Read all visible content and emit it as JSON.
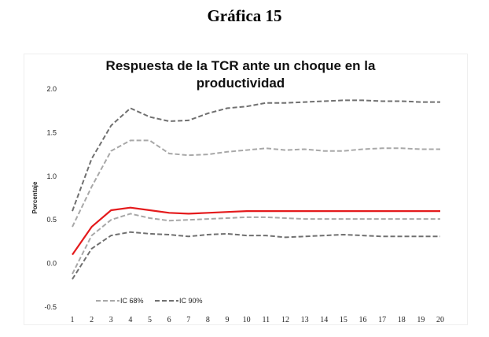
{
  "caption": "Gráfica 15",
  "chart_data": {
    "type": "line",
    "title_line1": "Respuesta de la TCR ante un choque en la",
    "title_line2": "productividad",
    "ylabel": "Porcentaje",
    "xlabel": "",
    "ylim": [
      -0.5,
      2.0
    ],
    "yticks": [
      "2.0",
      "1.5",
      "1.0",
      "0.5",
      "0.0",
      "-0.5"
    ],
    "x": [
      1,
      2,
      3,
      4,
      5,
      6,
      7,
      8,
      9,
      10,
      11,
      12,
      13,
      14,
      15,
      16,
      17,
      18,
      19,
      20
    ],
    "grid": false,
    "legend_position": "bottom-left",
    "series": [
      {
        "name": "",
        "role": "point",
        "color": "#e41a1c",
        "values": [
          0.1,
          0.42,
          0.61,
          0.64,
          0.61,
          0.58,
          0.57,
          0.58,
          0.59,
          0.6,
          0.6,
          0.6,
          0.6,
          0.6,
          0.6,
          0.6,
          0.6,
          0.6,
          0.6,
          0.6
        ]
      },
      {
        "name": "",
        "role": "ic68-upper",
        "color": "#a8a8a8",
        "values": [
          0.42,
          0.88,
          1.29,
          1.41,
          1.41,
          1.26,
          1.24,
          1.25,
          1.28,
          1.3,
          1.32,
          1.3,
          1.31,
          1.29,
          1.29,
          1.31,
          1.32,
          1.32,
          1.31,
          1.31
        ]
      },
      {
        "name": "",
        "role": "ic68-lower",
        "color": "#a8a8a8",
        "values": [
          -0.12,
          0.32,
          0.5,
          0.57,
          0.52,
          0.49,
          0.5,
          0.51,
          0.52,
          0.53,
          0.53,
          0.52,
          0.51,
          0.51,
          0.51,
          0.51,
          0.51,
          0.51,
          0.51,
          0.51
        ]
      },
      {
        "name": "",
        "role": "ic90-upper",
        "color": "#707070",
        "values": [
          0.6,
          1.2,
          1.58,
          1.78,
          1.68,
          1.63,
          1.64,
          1.72,
          1.78,
          1.8,
          1.84,
          1.84,
          1.85,
          1.86,
          1.87,
          1.87,
          1.86,
          1.86,
          1.85,
          1.85
        ]
      },
      {
        "name": "",
        "role": "ic90-lower",
        "color": "#707070",
        "values": [
          -0.18,
          0.17,
          0.32,
          0.36,
          0.34,
          0.33,
          0.31,
          0.33,
          0.34,
          0.32,
          0.32,
          0.3,
          0.31,
          0.32,
          0.33,
          0.32,
          0.31,
          0.31,
          0.31,
          0.31
        ]
      }
    ],
    "legend": [
      {
        "label": "IC 68%",
        "color": "#a8a8a8"
      },
      {
        "label": "IC 90%",
        "color": "#707070"
      }
    ]
  }
}
